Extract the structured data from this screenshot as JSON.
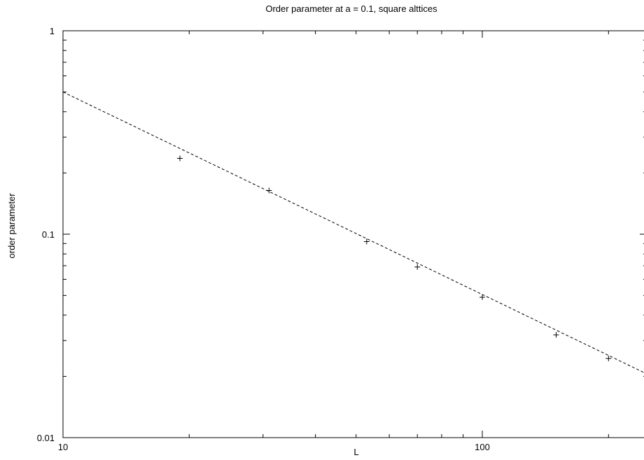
{
  "chart_data": {
    "type": "scatter",
    "title": "Order parameter at a = 0.1, square alttices",
    "xlabel": "L",
    "ylabel": "order parameter",
    "x_scale": "log",
    "y_scale": "log",
    "xlim": [
      10,
      250
    ],
    "ylim": [
      0.01,
      1
    ],
    "grid": false,
    "x_ticks": [
      {
        "value": 10,
        "label": "10"
      },
      {
        "value": 100,
        "label": "100"
      }
    ],
    "y_ticks": [
      {
        "value": 0.01,
        "label": "0.01"
      },
      {
        "value": 0.1,
        "label": "0.1"
      },
      {
        "value": 1,
        "label": "1"
      }
    ],
    "series": [
      {
        "style": "points",
        "marker": "plus",
        "color": "#000000",
        "x": [
          19,
          31,
          53,
          70,
          100,
          150,
          200
        ],
        "y": [
          0.236,
          0.164,
          0.092,
          0.069,
          0.049,
          0.032,
          0.0245
        ]
      },
      {
        "style": "dashed-line",
        "color": "#000000",
        "x": [
          10,
          250
        ],
        "y": [
          0.5,
          0.0203
        ]
      }
    ]
  }
}
